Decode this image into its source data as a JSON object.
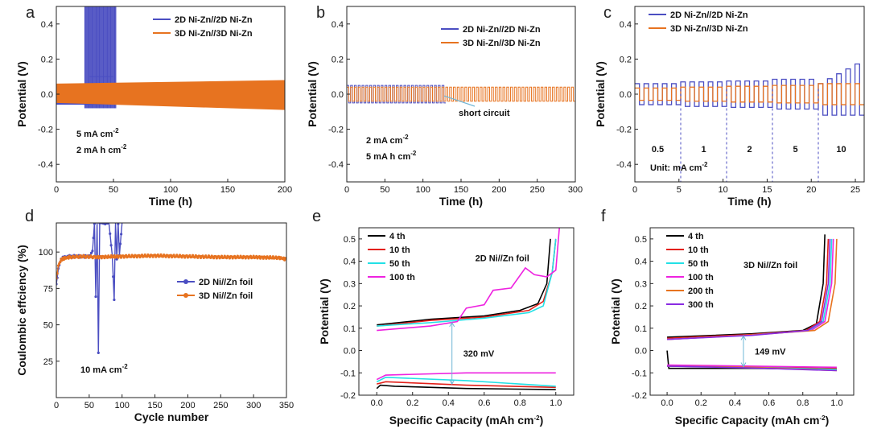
{
  "colors": {
    "blue": "#4b4ec2",
    "orange": "#e77320",
    "black": "#000000",
    "red": "#e3201a",
    "cyan": "#22e0e6",
    "magenta": "#ee22e0",
    "purple": "#8a2be2",
    "arrow": "#6fb6d6"
  },
  "chart_data": [
    {
      "id": "a",
      "type": "line",
      "panel_label": "a",
      "xlabel": "Time (h)",
      "ylabel": "Potential (V)",
      "xlim": [
        0,
        200
      ],
      "ylim": [
        -0.5,
        0.5
      ],
      "xticks": [
        "0",
        "50",
        "100",
        "150",
        "200"
      ],
      "yticks": [
        "-0.4",
        "-0.2",
        "0.0",
        "0.2",
        "0.4"
      ],
      "series": [
        {
          "name": "2D Ni-Zn//2D Ni-Zn",
          "color": "blue",
          "kind": "band_spike",
          "band_x": [
            0,
            52
          ],
          "band_high": 0.05,
          "band_low": -0.06,
          "spike_x": [
            25,
            52
          ],
          "spike_top": 0.5,
          "spike_bottom": -0.08
        },
        {
          "name": "3D Ni-Zn//3D Ni-Zn",
          "color": "orange",
          "kind": "band",
          "x": [
            0,
            200
          ],
          "high": [
            0.06,
            0.08
          ],
          "low": [
            -0.05,
            -0.09
          ]
        }
      ],
      "legend": [
        "2D Ni-Zn//2D Ni-Zn",
        "3D Ni-Zn//3D Ni-Zn"
      ],
      "annotations": [
        {
          "text": "5 mA cm",
          "sup": "-2"
        },
        {
          "text": "2 mA h cm",
          "sup": "-2"
        }
      ]
    },
    {
      "id": "b",
      "type": "line",
      "panel_label": "b",
      "xlabel": "Time (h)",
      "ylabel": "Potential (V)",
      "xlim": [
        0,
        300
      ],
      "ylim": [
        -0.5,
        0.5
      ],
      "xticks": [
        "0",
        "50",
        "100",
        "150",
        "200",
        "250",
        "300"
      ],
      "yticks": [
        "-0.4",
        "-0.2",
        "0.0",
        "0.2",
        "0.4"
      ],
      "series": [
        {
          "name": "2D Ni-Zn//2D Ni-Zn",
          "color": "blue",
          "kind": "square",
          "x": [
            0,
            130
          ],
          "high": 0.05,
          "low": -0.05,
          "period": 5
        },
        {
          "name": "3D Ni-Zn//3D Ni-Zn",
          "color": "orange",
          "kind": "square",
          "x": [
            0,
            300
          ],
          "high": 0.04,
          "low": -0.04,
          "period": 5
        }
      ],
      "legend": [
        "2D Ni-Zn//2D Ni-Zn",
        "3D Ni-Zn//3D Ni-Zn"
      ],
      "annotations": [
        {
          "text": "short circuit",
          "arrow_to": [
            128,
            -0.01
          ]
        },
        {
          "text": "2 mA cm",
          "sup": "-2"
        },
        {
          "text": "5 mA h cm",
          "sup": "-2"
        }
      ]
    },
    {
      "id": "c",
      "type": "line",
      "panel_label": "c",
      "xlabel": "Time (h)",
      "ylabel": "Potential (V)",
      "xlim": [
        0,
        26
      ],
      "ylim": [
        -0.5,
        0.5
      ],
      "xticks": [
        "0",
        "5",
        "10",
        "15",
        "20",
        "25"
      ],
      "yticks": [
        "-0.4",
        "-0.2",
        "0.0",
        "0.2",
        "0.4"
      ],
      "series": [
        {
          "name": "2D Ni-Zn//2D Ni-Zn",
          "color": "blue",
          "kind": "rate",
          "segments": [
            [
              0,
              5.2,
              0.06
            ],
            [
              5.2,
              10.4,
              0.07
            ],
            [
              10.4,
              15.6,
              0.075
            ],
            [
              15.6,
              20.8,
              0.085
            ],
            [
              20.8,
              26,
              0.2
            ]
          ]
        },
        {
          "name": "3D Ni-Zn//3D Ni-Zn",
          "color": "orange",
          "kind": "rate",
          "segments": [
            [
              0,
              5.2,
              0.035
            ],
            [
              5.2,
              10.4,
              0.04
            ],
            [
              10.4,
              15.6,
              0.045
            ],
            [
              15.6,
              20.8,
              0.05
            ],
            [
              20.8,
              26,
              0.06
            ]
          ]
        }
      ],
      "dividers": [
        5.2,
        10.4,
        15.6,
        20.8
      ],
      "rate_labels": [
        "0.5",
        "1",
        "2",
        "5",
        "10"
      ],
      "legend": [
        "2D Ni-Zn//2D Ni-Zn",
        "3D Ni-Zn//3D Ni-Zn"
      ],
      "annotations": [
        {
          "text": "Unit: mA cm",
          "sup": "-2"
        }
      ]
    },
    {
      "id": "d",
      "type": "line",
      "panel_label": "d",
      "xlabel": "Cycle number",
      "ylabel": "Coulombic effciency (%)",
      "xlim": [
        0,
        350
      ],
      "ylim": [
        0,
        120
      ],
      "xticks": [
        "0",
        "50",
        "100",
        "150",
        "200",
        "250",
        "300",
        "350"
      ],
      "yticks": [
        "25",
        "50",
        "75",
        "100"
      ],
      "series": [
        {
          "name": "2D Ni//Zn foil",
          "color": "blue",
          "x": [
            0,
            3,
            6,
            10,
            20,
            30,
            40,
            50,
            55,
            58,
            60,
            62,
            64,
            66,
            70,
            80,
            85,
            88,
            90,
            92,
            94,
            96,
            100
          ],
          "y": [
            78,
            88,
            94,
            96,
            97,
            97,
            97,
            97,
            100,
            120,
            70,
            120,
            30,
            120,
            120,
            120,
            98,
            67,
            120,
            95,
            120,
            98,
            120
          ]
        },
        {
          "name": "3D Ni//Zn foil",
          "color": "orange",
          "x": [
            0,
            3,
            6,
            10,
            20,
            40,
            60,
            100,
            150,
            200,
            250,
            300,
            340,
            350
          ],
          "y": [
            82,
            90,
            94,
            95.5,
            96.5,
            97,
            96.5,
            97,
            97.5,
            97,
            96.5,
            96.5,
            96,
            95
          ]
        }
      ],
      "legend": [
        "2D Ni//Zn foil",
        "3D Ni//Zn foil"
      ],
      "annotations": [
        {
          "text": "10 mA cm",
          "sup": "-2"
        }
      ]
    },
    {
      "id": "e",
      "type": "line",
      "panel_label": "e",
      "xlabel": "Specific Capacity (mAh cm",
      "xlabel_sup": "-2",
      "xlabel_end": ")",
      "ylabel": "Potential (V)",
      "xlim": [
        -0.1,
        1.1
      ],
      "ylim": [
        -0.2,
        0.55
      ],
      "xticks": [
        "0.0",
        "0.2",
        "0.4",
        "0.6",
        "0.8",
        "1.0"
      ],
      "yticks": [
        "-0.2",
        "-0.1",
        "0.0",
        "0.1",
        "0.2",
        "0.3",
        "0.4",
        "0.5"
      ],
      "title_text": "2D Ni//Zn foil",
      "gap_label": "320 mV",
      "gap_x": 0.42,
      "series": [
        {
          "name": "4 th",
          "color": "black",
          "charge": [
            [
              0,
              0.115
            ],
            [
              0.3,
              0.14
            ],
            [
              0.6,
              0.155
            ],
            [
              0.8,
              0.18
            ],
            [
              0.9,
              0.21
            ],
            [
              0.95,
              0.3
            ],
            [
              0.97,
              0.5
            ]
          ],
          "discharge": [
            [
              0,
              -0.17
            ],
            [
              0.02,
              -0.155
            ],
            [
              0.1,
              -0.16
            ],
            [
              0.5,
              -0.17
            ],
            [
              1.0,
              -0.175
            ]
          ]
        },
        {
          "name": "10 th",
          "color": "red",
          "charge": [
            [
              0,
              0.11
            ],
            [
              0.3,
              0.135
            ],
            [
              0.6,
              0.15
            ],
            [
              0.85,
              0.18
            ],
            [
              0.93,
              0.22
            ],
            [
              0.98,
              0.35
            ],
            [
              1.0,
              0.5
            ]
          ],
          "discharge": [
            [
              0,
              -0.15
            ],
            [
              0.05,
              -0.14
            ],
            [
              0.5,
              -0.155
            ],
            [
              1.0,
              -0.165
            ]
          ]
        },
        {
          "name": "50 th",
          "color": "cyan",
          "charge": [
            [
              0,
              0.11
            ],
            [
              0.3,
              0.125
            ],
            [
              0.6,
              0.145
            ],
            [
              0.85,
              0.17
            ],
            [
              0.93,
              0.2
            ],
            [
              0.98,
              0.35
            ],
            [
              1.0,
              0.5
            ]
          ],
          "discharge": [
            [
              0,
              -0.14
            ],
            [
              0.05,
              -0.12
            ],
            [
              0.5,
              -0.135
            ],
            [
              1.0,
              -0.16
            ]
          ]
        },
        {
          "name": "100 th",
          "color": "magenta",
          "charge": [
            [
              0,
              0.09
            ],
            [
              0.3,
              0.11
            ],
            [
              0.45,
              0.13
            ],
            [
              0.5,
              0.19
            ],
            [
              0.6,
              0.205
            ],
            [
              0.65,
              0.27
            ],
            [
              0.75,
              0.28
            ],
            [
              0.83,
              0.37
            ],
            [
              0.88,
              0.34
            ],
            [
              0.95,
              0.33
            ],
            [
              1.0,
              0.36
            ],
            [
              1.02,
              0.55
            ]
          ],
          "discharge": [
            [
              0,
              -0.13
            ],
            [
              0.05,
              -0.11
            ],
            [
              0.5,
              -0.1
            ],
            [
              1.0,
              -0.1
            ]
          ]
        }
      ],
      "legend": [
        "4 th",
        "10 th",
        "50 th",
        "100 th"
      ]
    },
    {
      "id": "f",
      "type": "line",
      "panel_label": "f",
      "xlabel": "Specific Capacity (mAh cm",
      "xlabel_sup": "-2",
      "xlabel_end": ")",
      "ylabel": "Potential (V)",
      "xlim": [
        -0.1,
        1.1
      ],
      "ylim": [
        -0.2,
        0.55
      ],
      "xticks": [
        "0.0",
        "0.2",
        "0.4",
        "0.6",
        "0.8",
        "1.0"
      ],
      "yticks": [
        "-0.2",
        "-0.1",
        "0.0",
        "0.1",
        "0.2",
        "0.3",
        "0.4",
        "0.5"
      ],
      "title_text": "3D Ni//Zn foil",
      "gap_label": "149 mV",
      "gap_x": 0.45,
      "series": [
        {
          "name": "4 th",
          "color": "black",
          "charge": [
            [
              0,
              0.06
            ],
            [
              0.5,
              0.075
            ],
            [
              0.8,
              0.09
            ],
            [
              0.88,
              0.12
            ],
            [
              0.92,
              0.3
            ],
            [
              0.93,
              0.52
            ]
          ],
          "discharge": [
            [
              0,
              0.0
            ],
            [
              0.01,
              -0.08
            ],
            [
              0.5,
              -0.08
            ],
            [
              1.0,
              -0.085
            ]
          ]
        },
        {
          "name": "10 th",
          "color": "red",
          "charge": [
            [
              0,
              0.055
            ],
            [
              0.5,
              0.072
            ],
            [
              0.82,
              0.09
            ],
            [
              0.9,
              0.13
            ],
            [
              0.94,
              0.3
            ],
            [
              0.95,
              0.5
            ]
          ],
          "discharge": [
            [
              0,
              -0.07
            ],
            [
              0.5,
              -0.075
            ],
            [
              1.0,
              -0.08
            ]
          ]
        },
        {
          "name": "50 th",
          "color": "cyan",
          "charge": [
            [
              0,
              0.05
            ],
            [
              0.5,
              0.07
            ],
            [
              0.84,
              0.09
            ],
            [
              0.92,
              0.13
            ],
            [
              0.96,
              0.3
            ],
            [
              0.97,
              0.5
            ]
          ],
          "discharge": [
            [
              0,
              -0.07
            ],
            [
              0.5,
              -0.075
            ],
            [
              1.0,
              -0.085
            ]
          ]
        },
        {
          "name": "100 th",
          "color": "magenta",
          "charge": [
            [
              0,
              0.05
            ],
            [
              0.5,
              0.07
            ],
            [
              0.85,
              0.09
            ],
            [
              0.93,
              0.13
            ],
            [
              0.97,
              0.3
            ],
            [
              0.98,
              0.5
            ]
          ],
          "discharge": [
            [
              0,
              -0.065
            ],
            [
              0.5,
              -0.07
            ],
            [
              1.0,
              -0.075
            ]
          ]
        },
        {
          "name": "200 th",
          "color": "orange",
          "charge": [
            [
              0,
              0.05
            ],
            [
              0.5,
              0.07
            ],
            [
              0.87,
              0.09
            ],
            [
              0.95,
              0.13
            ],
            [
              0.99,
              0.3
            ],
            [
              1.0,
              0.5
            ]
          ],
          "discharge": [
            [
              0,
              -0.07
            ],
            [
              0.5,
              -0.075
            ],
            [
              1.0,
              -0.09
            ]
          ]
        },
        {
          "name": "300 th",
          "color": "purple",
          "charge": [
            [
              0,
              0.05
            ],
            [
              0.5,
              0.068
            ],
            [
              0.83,
              0.09
            ],
            [
              0.91,
              0.13
            ],
            [
              0.95,
              0.3
            ],
            [
              0.96,
              0.5
            ]
          ],
          "discharge": [
            [
              0,
              -0.07
            ],
            [
              0.5,
              -0.078
            ],
            [
              1.0,
              -0.09
            ]
          ]
        }
      ],
      "legend": [
        "4 th",
        "10 th",
        "50 th",
        "100 th",
        "200 th",
        "300 th"
      ]
    }
  ]
}
